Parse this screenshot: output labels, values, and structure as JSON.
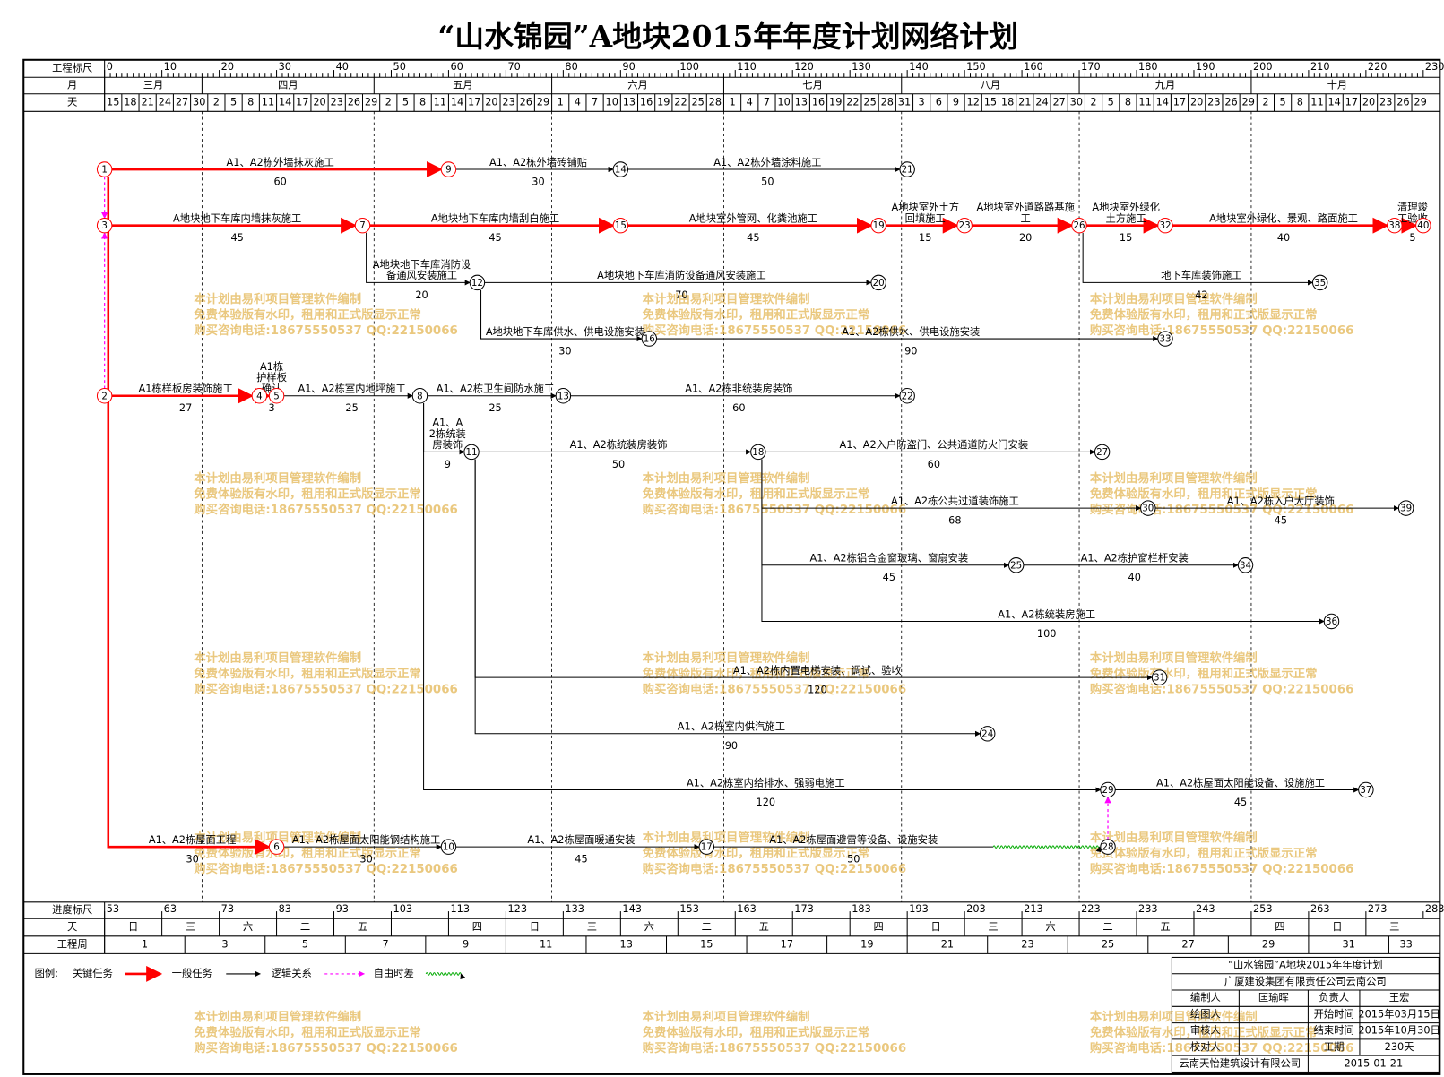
{
  "title": "“山水锦园”A地块2015年年度计划网络计划",
  "header": {
    "scale_label": "工程标尺",
    "month_label": "月",
    "day_label": "天",
    "scale_ticks": [
      0,
      10,
      20,
      30,
      40,
      50,
      60,
      70,
      80,
      90,
      100,
      110,
      120,
      130,
      140,
      150,
      160,
      170,
      180,
      190,
      200,
      210,
      220,
      230
    ],
    "months": [
      "三月",
      "四月",
      "五月",
      "六月",
      "七月",
      "八月",
      "九月",
      "十月"
    ],
    "days": [
      15,
      18,
      21,
      24,
      27,
      30,
      2,
      5,
      8,
      11,
      14,
      17,
      20,
      23,
      26,
      29,
      2,
      5,
      8,
      11,
      14,
      17,
      20,
      23,
      26,
      29,
      1,
      4,
      7,
      10,
      13,
      16,
      19,
      22,
      25,
      28,
      1,
      4,
      7,
      10,
      13,
      16,
      19,
      22,
      25,
      28,
      31,
      3,
      6,
      9,
      12,
      15,
      18,
      21,
      24,
      27,
      30,
      2,
      5,
      8,
      11,
      14,
      17,
      20,
      23,
      26,
      29,
      2,
      5,
      8,
      11,
      14,
      17,
      20,
      23,
      26,
      29
    ]
  },
  "nodes": [
    {
      "label": "1",
      "day": 0
    },
    {
      "label": "2",
      "day": 0
    },
    {
      "label": "3",
      "day": 0
    },
    {
      "label": "4",
      "day": 27
    },
    {
      "label": "5",
      "day": 30
    },
    {
      "label": "6",
      "day": 30
    },
    {
      "label": "7",
      "day": 45
    },
    {
      "label": "8",
      "day": 55
    },
    {
      "label": "9",
      "day": 60
    },
    {
      "label": "10",
      "day": 60
    },
    {
      "label": "11",
      "day": 64
    },
    {
      "label": "12",
      "day": 65
    },
    {
      "label": "13",
      "day": 80
    },
    {
      "label": "14",
      "day": 90
    },
    {
      "label": "15",
      "day": 90
    },
    {
      "label": "16",
      "day": 95
    },
    {
      "label": "17",
      "day": 105
    },
    {
      "label": "18",
      "day": 114
    },
    {
      "label": "19",
      "day": 135
    },
    {
      "label": "20",
      "day": 135
    },
    {
      "label": "21",
      "day": 140
    },
    {
      "label": "22",
      "day": 140
    },
    {
      "label": "23",
      "day": 150
    },
    {
      "label": "24",
      "day": 154
    },
    {
      "label": "25",
      "day": 159
    },
    {
      "label": "26",
      "day": 170
    },
    {
      "label": "27",
      "day": 174
    },
    {
      "label": "28",
      "day": 175
    },
    {
      "label": "29",
      "day": 175
    },
    {
      "label": "30",
      "day": 182
    },
    {
      "label": "31",
      "day": 184
    },
    {
      "label": "32",
      "day": 185
    },
    {
      "label": "33",
      "day": 185
    },
    {
      "label": "34",
      "day": 199
    },
    {
      "label": "35",
      "day": 212
    },
    {
      "label": "36",
      "day": 214
    },
    {
      "label": "37",
      "day": 220
    },
    {
      "label": "38",
      "day": 225
    },
    {
      "label": "39",
      "day": 227
    },
    {
      "label": "40",
      "day": 230
    }
  ],
  "edges": [
    {
      "from": 0,
      "to": 8,
      "kind": "critical",
      "name": "A1、A2栋外墙抹灰施工",
      "duration": 60
    },
    {
      "from": 8,
      "to": 13,
      "kind": "normal",
      "name": "A1、A2栋外墙砖铺贴",
      "duration": 30
    },
    {
      "from": 13,
      "to": 20,
      "kind": "normal",
      "name": "A1、A2栋外墙涂料施工",
      "duration": 50
    },
    {
      "from": 2,
      "to": 6,
      "kind": "critical",
      "name": "A地块地下车库内墙抹灰施工",
      "duration": 45
    },
    {
      "from": 6,
      "to": 14,
      "kind": "critical",
      "name": "A地块地下车库内墙刮白施工",
      "duration": 45
    },
    {
      "from": 14,
      "to": 18,
      "kind": "critical",
      "name": "A地块室外管网、化粪池施工",
      "duration": 45
    },
    {
      "from": 18,
      "to": 22,
      "kind": "critical",
      "name": "A地块室外土方回填施工",
      "duration": 15
    },
    {
      "from": 22,
      "to": 25,
      "kind": "critical",
      "name": "A地块室外道路路基施工",
      "duration": 20
    },
    {
      "from": 25,
      "to": 31,
      "kind": "critical",
      "name": "A地块室外绿化土方施工",
      "duration": 15
    },
    {
      "from": 31,
      "to": 37,
      "kind": "critical",
      "name": "A地块室外绿化、景观、路面施工",
      "duration": 40
    },
    {
      "from": 37,
      "to": 39,
      "kind": "critical",
      "name": "清理竣工验收",
      "duration": 5
    },
    {
      "from": 6,
      "to": 11,
      "kind": "normal",
      "name": "A地块地下车库消防设备通风安装施工",
      "duration": 20
    },
    {
      "from": 11,
      "to": 19,
      "kind": "normal",
      "name": "A地块地下车库消防设备通风安装施工",
      "duration": 70
    },
    {
      "from": 11,
      "to": 15,
      "kind": "normal",
      "name": "A地块地下车库供水、供电设施安装",
      "duration": 30
    },
    {
      "from": 15,
      "to": 32,
      "kind": "normal",
      "name": "A1、A2栋供水、供电设施安装",
      "duration": 90
    },
    {
      "from": 25,
      "to": 34,
      "kind": "normal",
      "name": "地下车库装饰施工",
      "duration": 42
    },
    {
      "from": 1,
      "to": 3,
      "kind": "critical",
      "name": "A1栋样板房装饰施工",
      "duration": 27
    },
    {
      "from": 3,
      "to": 4,
      "kind": "critical",
      "name": "A1栋护样板确认",
      "duration": 3
    },
    {
      "from": 4,
      "to": 7,
      "kind": "normal",
      "name": "A1、A2栋室内地坪施工",
      "duration": 25
    },
    {
      "from": 7,
      "to": 12,
      "kind": "normal",
      "name": "A1、A2栋卫生间防水施工",
      "duration": 25
    },
    {
      "from": 12,
      "to": 21,
      "kind": "normal",
      "name": "A1、A2栋非统装房装饰",
      "duration": 60
    },
    {
      "from": 7,
      "to": 10,
      "kind": "normal",
      "name": "A1、A2栋统装房装饰",
      "duration": 9
    },
    {
      "from": 10,
      "to": 17,
      "kind": "normal",
      "name": "A1、A2栋统装房装饰",
      "duration": 50
    },
    {
      "from": 17,
      "to": 26,
      "kind": "normal",
      "name": "A1、A2入户防盗门、公共通道防火门安装",
      "duration": 60
    },
    {
      "from": 17,
      "to": 29,
      "kind": "normal",
      "name": "A1、A2栋公共过道装饰施工",
      "duration": 68
    },
    {
      "from": 29,
      "to": 38,
      "kind": "normal",
      "name": "A1、A2栋入户大厅装饰",
      "duration": 45
    },
    {
      "from": 17,
      "to": 24,
      "kind": "normal",
      "name": "A1、A2栋铝合金窗玻璃、窗扇安装",
      "duration": 45
    },
    {
      "from": 24,
      "to": 33,
      "kind": "normal",
      "name": "A1、A2栋护窗栏杆安装",
      "duration": 40
    },
    {
      "from": 17,
      "to": 35,
      "kind": "normal",
      "name": "A1、A2栋统装房施工",
      "duration": 100
    },
    {
      "from": 10,
      "to": 30,
      "kind": "normal",
      "name": "A1、A2栋内置电梯安装、调试、验收",
      "duration": 120
    },
    {
      "from": 10,
      "to": 23,
      "kind": "normal",
      "name": "A1、A2栋室内供汽施工",
      "duration": 90
    },
    {
      "from": 7,
      "to": 28,
      "kind": "normal",
      "name": "A1、A2栋室内给排水、强弱电施工",
      "duration": 120
    },
    {
      "from": 28,
      "to": 36,
      "kind": "normal",
      "name": "A1、A2栋屋面太阳能设备、设施施工",
      "duration": 45
    },
    {
      "from": 0,
      "to": 5,
      "kind": "critical",
      "name": "A1、A2栋屋面工程",
      "duration": 30
    },
    {
      "from": 5,
      "to": 9,
      "kind": "normal",
      "name": "A1、A2栋屋面太阳能钢结构施工",
      "duration": 30
    },
    {
      "from": 9,
      "to": 16,
      "kind": "normal",
      "name": "A1、A2栋屋面暖通安装",
      "duration": 45
    },
    {
      "from": 16,
      "to": 27,
      "kind": "normal",
      "name": "A1、A2栋屋面避雷等设备、设施安装",
      "duration": 50
    },
    {
      "from": 0,
      "to": 2,
      "kind": "logic"
    },
    {
      "from": 1,
      "to": 2,
      "kind": "logic"
    },
    {
      "from": 27,
      "to": 28,
      "kind": "logic"
    }
  ],
  "footer": {
    "progress_label": "进度标尺",
    "progress_ticks": [
      53,
      63,
      73,
      83,
      93,
      103,
      113,
      123,
      133,
      143,
      153,
      163,
      173,
      183,
      193,
      203,
      213,
      223,
      233,
      243,
      253,
      263,
      273,
      283
    ],
    "weekday_label": "天",
    "weekdays": [
      "日",
      "三",
      "六",
      "二",
      "五",
      "一",
      "四",
      "日",
      "三",
      "六",
      "二",
      "五",
      "一",
      "四",
      "日",
      "三",
      "六",
      "二",
      "五",
      "一",
      "四",
      "日",
      "三"
    ],
    "week_label": "工程周",
    "weeks": [
      1,
      3,
      5,
      7,
      9,
      11,
      13,
      15,
      17,
      19,
      21,
      23,
      25,
      27,
      29,
      31,
      33
    ]
  },
  "legend": {
    "title": "图例:",
    "items": [
      "关键任务",
      "一般任务",
      "逻辑关系",
      "自由时差"
    ]
  },
  "title_block": {
    "project": "“山水锦园”A地块2015年年度计划",
    "company": "广厦建设集团有限责任公司云南公司",
    "rows": [
      [
        "编制人",
        "匡瑜晖",
        "负责人",
        "王宏"
      ],
      [
        "绘图人",
        "开始时间",
        "2015年03月15日"
      ],
      [
        "审核人",
        "结束时间",
        "2015年10月30日"
      ],
      [
        "校对人",
        "工期",
        "230天"
      ]
    ],
    "designer": "云南天怡建筑设计有限公司",
    "date": "2015-01-21"
  },
  "watermark": [
    "本计划由易利项目管理软件编制",
    "免费体验版有水印，租用和正式版显示正常",
    "购买咨询电话:18675550537 QQ:22150066"
  ]
}
